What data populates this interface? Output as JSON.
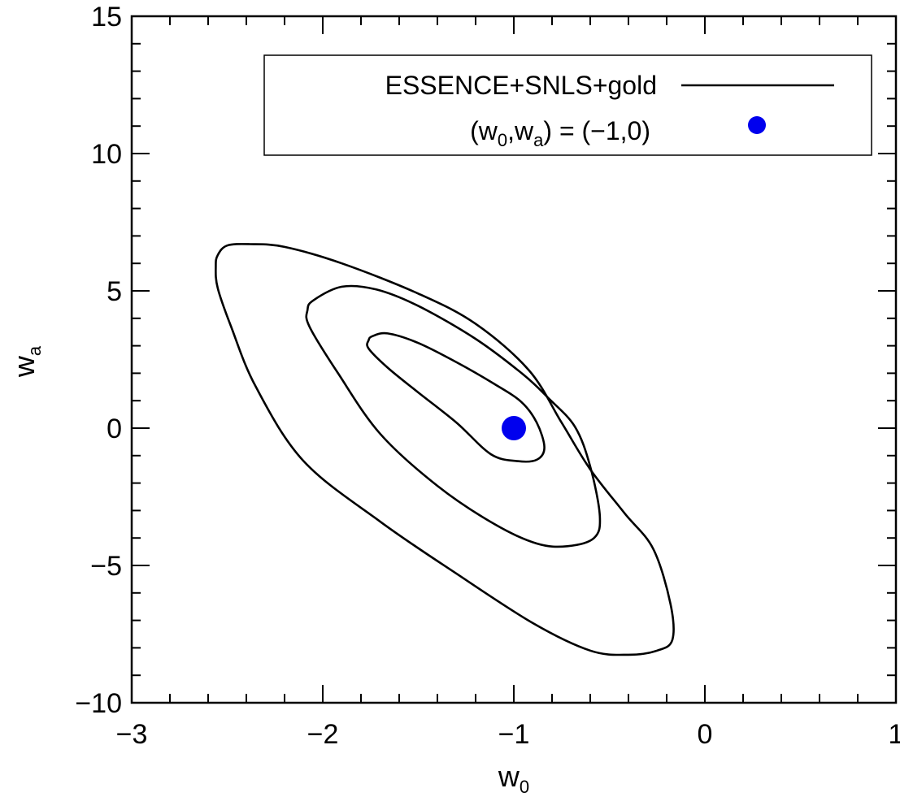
{
  "chart_data": {
    "type": "line",
    "xlim": [
      -3,
      1
    ],
    "ylim": [
      -10,
      15
    ],
    "x_ticks": [
      {
        "value": -3,
        "label": "−3"
      },
      {
        "value": -2,
        "label": "−2"
      },
      {
        "value": -1,
        "label": "−1"
      },
      {
        "value": 0,
        "label": "0"
      },
      {
        "value": 1,
        "label": "1"
      }
    ],
    "y_ticks": [
      {
        "value": -10,
        "label": "−10"
      },
      {
        "value": -5,
        "label": "−5"
      },
      {
        "value": 0,
        "label": "0"
      },
      {
        "value": 5,
        "label": "5"
      },
      {
        "value": 10,
        "label": "10"
      },
      {
        "value": 15,
        "label": "15"
      }
    ],
    "x_minor_step": 0.2,
    "y_minor_step": 1,
    "xlabel": {
      "base": "w",
      "sub": "0"
    },
    "ylabel": {
      "base": "w",
      "sub": "a"
    },
    "grid": false,
    "legend": {
      "placement": "top-right",
      "entries": [
        {
          "label": "ESSENCE+SNLS+gold",
          "marker": "line",
          "color": "#000000"
        },
        {
          "label_parts": [
            "(w",
            "0",
            ",w",
            "a",
            ") = (−1,0)"
          ],
          "marker": "dot",
          "color": "#0000ee"
        }
      ]
    },
    "series": [
      {
        "color": "#000000",
        "points": [
          [
            -1.74,
            3.35
          ],
          [
            -1.66,
            3.45
          ],
          [
            -1.5,
            3.1
          ],
          [
            -1.3,
            2.4
          ],
          [
            -1.1,
            1.6
          ],
          [
            -0.96,
            0.95
          ],
          [
            -0.88,
            0.2
          ],
          [
            -0.84,
            -0.7
          ],
          [
            -0.88,
            -1.15
          ],
          [
            -0.98,
            -1.2
          ],
          [
            -1.12,
            -0.95
          ],
          [
            -1.3,
            0.2
          ],
          [
            -1.5,
            1.3
          ],
          [
            -1.66,
            2.2
          ],
          [
            -1.76,
            2.9
          ],
          [
            -1.76,
            3.2
          ],
          [
            -1.74,
            3.35
          ]
        ]
      },
      {
        "color": "#000000",
        "points": [
          [
            -2.05,
            4.65
          ],
          [
            -1.9,
            5.15
          ],
          [
            -1.72,
            5.05
          ],
          [
            -1.5,
            4.45
          ],
          [
            -1.2,
            3.25
          ],
          [
            -0.95,
            1.95
          ],
          [
            -0.82,
            1.1
          ],
          [
            -0.68,
            0.05
          ],
          [
            -0.6,
            -1.4
          ],
          [
            -0.55,
            -3.2
          ],
          [
            -0.58,
            -4.0
          ],
          [
            -0.72,
            -4.3
          ],
          [
            -0.88,
            -4.2
          ],
          [
            -1.1,
            -3.5
          ],
          [
            -1.4,
            -2.1
          ],
          [
            -1.7,
            -0.2
          ],
          [
            -1.92,
            2.0
          ],
          [
            -2.07,
            3.7
          ],
          [
            -2.08,
            4.3
          ],
          [
            -2.05,
            4.65
          ]
        ]
      },
      {
        "color": "#000000",
        "points": [
          [
            -2.55,
            6.3
          ],
          [
            -2.5,
            6.65
          ],
          [
            -2.38,
            6.7
          ],
          [
            -2.2,
            6.6
          ],
          [
            -1.9,
            6.0
          ],
          [
            -1.5,
            4.9
          ],
          [
            -1.2,
            3.8
          ],
          [
            -0.92,
            2.1
          ],
          [
            -0.75,
            0.2
          ],
          [
            -0.6,
            -1.5
          ],
          [
            -0.42,
            -3.1
          ],
          [
            -0.27,
            -4.4
          ],
          [
            -0.18,
            -6.4
          ],
          [
            -0.17,
            -7.7
          ],
          [
            -0.25,
            -8.1
          ],
          [
            -0.4,
            -8.25
          ],
          [
            -0.6,
            -8.1
          ],
          [
            -0.9,
            -7.1
          ],
          [
            -1.3,
            -5.3
          ],
          [
            -1.7,
            -3.4
          ],
          [
            -2.1,
            -1.2
          ],
          [
            -2.35,
            1.5
          ],
          [
            -2.48,
            3.7
          ],
          [
            -2.55,
            5.1
          ],
          [
            -2.56,
            5.9
          ],
          [
            -2.55,
            6.3
          ]
        ]
      }
    ],
    "points": [
      {
        "x": -1.0,
        "y": 0.0,
        "color": "#0000ee"
      }
    ]
  }
}
